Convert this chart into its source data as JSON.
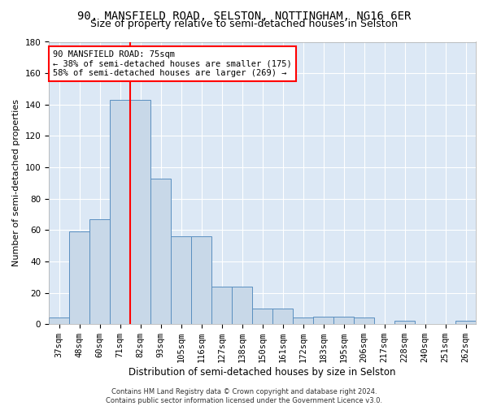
{
  "title": "90, MANSFIELD ROAD, SELSTON, NOTTINGHAM, NG16 6ER",
  "subtitle": "Size of property relative to semi-detached houses in Selston",
  "xlabel": "Distribution of semi-detached houses by size in Selston",
  "ylabel": "Number of semi-detached properties",
  "categories": [
    "37sqm",
    "48sqm",
    "60sqm",
    "71sqm",
    "82sqm",
    "93sqm",
    "105sqm",
    "116sqm",
    "127sqm",
    "138sqm",
    "150sqm",
    "161sqm",
    "172sqm",
    "183sqm",
    "195sqm",
    "206sqm",
    "217sqm",
    "228sqm",
    "240sqm",
    "251sqm",
    "262sqm"
  ],
  "values": [
    4,
    59,
    67,
    143,
    143,
    93,
    56,
    56,
    24,
    24,
    10,
    10,
    4,
    5,
    5,
    4,
    0,
    2,
    0,
    0,
    2
  ],
  "bar_color": "#c8d8e8",
  "bar_edge_color": "#5a8fc0",
  "vline_x": 3.5,
  "vline_color": "red",
  "annotation_box_text": "90 MANSFIELD ROAD: 75sqm\n← 38% of semi-detached houses are smaller (175)\n58% of semi-detached houses are larger (269) →",
  "ylim": [
    0,
    180
  ],
  "yticks": [
    0,
    20,
    40,
    60,
    80,
    100,
    120,
    140,
    160,
    180
  ],
  "bg_color": "#dce8f5",
  "title_fontsize": 10,
  "subtitle_fontsize": 9,
  "xlabel_fontsize": 8.5,
  "ylabel_fontsize": 8,
  "annotation_fontsize": 7.5,
  "tick_fontsize": 7.5,
  "footer_line1": "Contains HM Land Registry data © Crown copyright and database right 2024.",
  "footer_line2": "Contains public sector information licensed under the Government Licence v3.0."
}
